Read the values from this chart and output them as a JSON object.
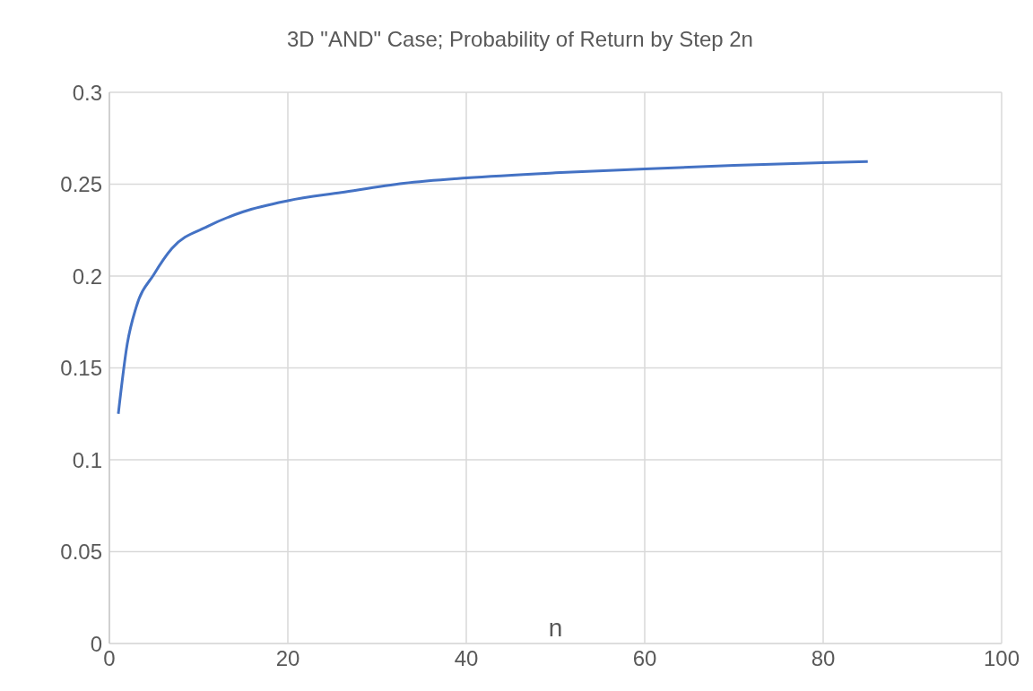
{
  "chart_data": {
    "type": "line",
    "title": "3D \"AND\" Case; Probability of Return by Step 2n",
    "xlabel": "n",
    "series": [
      {
        "color": "#4472c4",
        "x": [
          1,
          2,
          3,
          5,
          7,
          11,
          15,
          20,
          26,
          33,
          40,
          50,
          60,
          70,
          80,
          85
        ],
        "values": [
          0.125,
          0.163,
          0.183,
          0.201,
          0.215,
          0.227,
          0.235,
          0.241,
          0.2455,
          0.2505,
          0.2534,
          0.2562,
          0.2583,
          0.2602,
          0.2617,
          0.2623
        ]
      }
    ],
    "xlim": [
      0,
      100
    ],
    "xticks": [
      0,
      20,
      40,
      60,
      80,
      100
    ],
    "ylim": [
      0,
      0.3
    ],
    "yticks": [
      0,
      0.05,
      0.1,
      0.15,
      0.2,
      0.25,
      0.3
    ],
    "grid": true,
    "marker": "none",
    "line_style": "solid"
  }
}
